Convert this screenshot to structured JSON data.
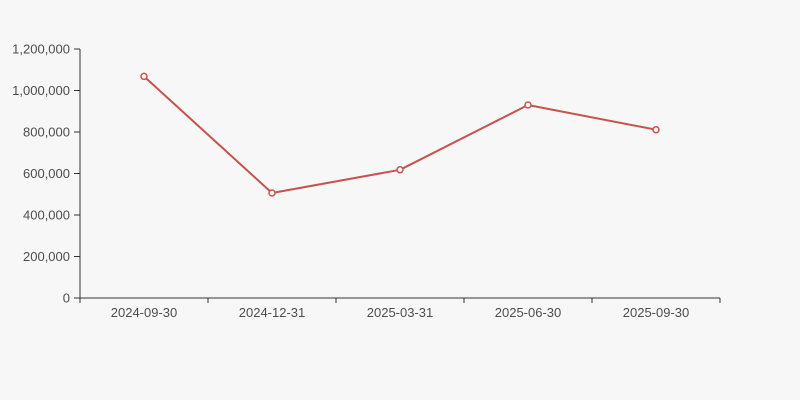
{
  "page": {
    "background": "#f7f7f7"
  },
  "chart_data": {
    "type": "line",
    "title": "",
    "xlabel": "",
    "ylabel": "",
    "categories": [
      "2024-09-30",
      "2024-12-31",
      "2025-03-31",
      "2025-06-30",
      "2025-09-30"
    ],
    "values": [
      1068000,
      506000,
      618000,
      930000,
      811000
    ],
    "ylim": [
      0,
      1200000
    ],
    "y_ticks": [
      0,
      200000,
      400000,
      600000,
      800000,
      1000000,
      1200000
    ],
    "y_tick_labels": [
      "0",
      "200,000",
      "400,000",
      "600,000",
      "800,000",
      "1,000,000",
      "1,200,000"
    ],
    "grid": false,
    "legend": false,
    "line_color": "#c5534e",
    "marker": "hollow-circle",
    "marker_fill": "#ffffff",
    "axis_color": "#333333",
    "label_color": "#4d4d4d"
  }
}
